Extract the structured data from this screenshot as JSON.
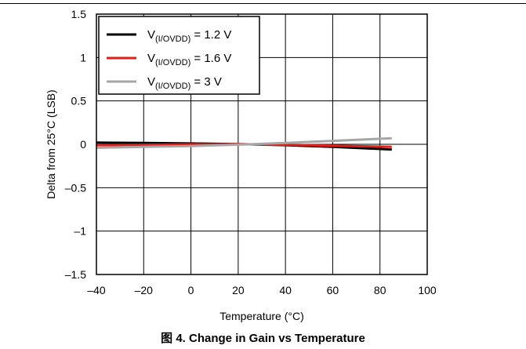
{
  "chart_data": {
    "type": "line",
    "xlabel": "Temperature (°C)",
    "ylabel": "Delta from 25°C (LSB)",
    "xlim": [
      -40,
      100
    ],
    "ylim": [
      -1.5,
      1.5
    ],
    "xticks": [
      -40,
      -20,
      0,
      20,
      40,
      60,
      80,
      100
    ],
    "xtick_labels": [
      "–40",
      "–20",
      "0",
      "20",
      "40",
      "60",
      "80",
      "100"
    ],
    "yticks": [
      1.5,
      1,
      0.5,
      0,
      -0.5,
      -1,
      -1.5
    ],
    "ytick_labels": [
      "1.5",
      "1",
      "0.5",
      "0",
      "–0.5",
      "–1",
      "–1.5"
    ],
    "grid": true,
    "legend_position": "top-left",
    "series": [
      {
        "legend_main": "V",
        "legend_sub": "(I/OVDD)",
        "legend_tail": " = 1.2 V",
        "color": "#000000",
        "x": [
          -40,
          -20,
          0,
          25,
          40,
          60,
          85
        ],
        "y": [
          0.02,
          0.015,
          0.01,
          0.0,
          -0.01,
          -0.03,
          -0.06
        ]
      },
      {
        "legend_main": "V",
        "legend_sub": "(I/OVDD)",
        "legend_tail": " = 1.6 V",
        "color": "#e0201b",
        "x": [
          -40,
          -20,
          0,
          25,
          40,
          60,
          85
        ],
        "y": [
          -0.01,
          -0.005,
          0.0,
          0.0,
          -0.005,
          -0.015,
          -0.03
        ]
      },
      {
        "legend_main": "V",
        "legend_sub": "(I/OVDD)",
        "legend_tail": " = 3 V",
        "color": "#a6a6a6",
        "x": [
          -40,
          -20,
          0,
          25,
          40,
          60,
          85
        ],
        "y": [
          -0.04,
          -0.03,
          -0.02,
          0.0,
          0.015,
          0.04,
          0.07
        ]
      }
    ]
  },
  "caption": "图 4. Change in Gain vs Temperature"
}
